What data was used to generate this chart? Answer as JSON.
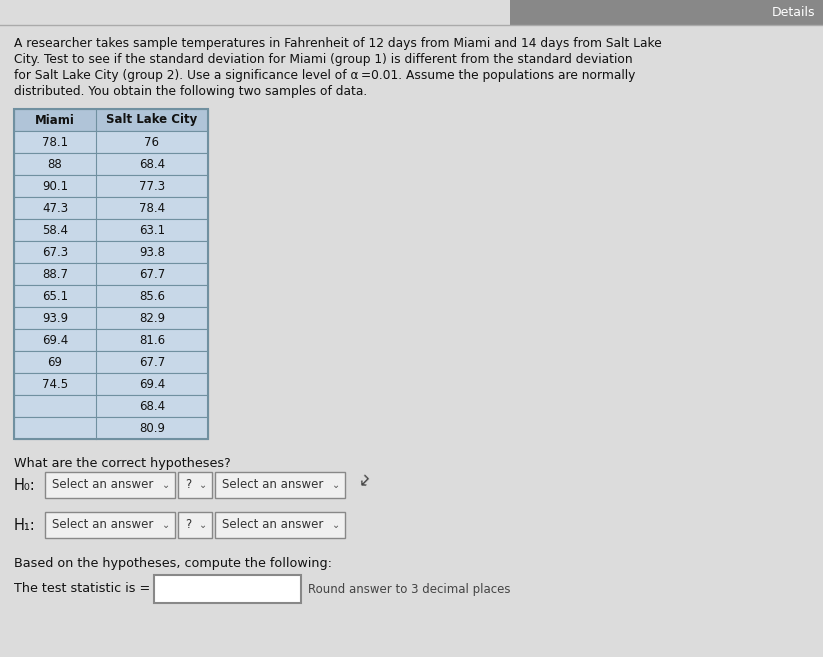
{
  "title_text": "A researcher takes sample temperatures in Fahrenheit of 12 days from Miami and 14 days from Salt Lake\nCity. Test to see if the standard deviation for Miami (group 1) is different from the standard deviation\nfor Salt Lake City (group 2). Use a significance level of α =0.01. Assume the populations are normally\ndistributed. You obtain the following two samples of data.",
  "col1_header": "Miami",
  "col2_header": "Salt Lake City",
  "miami_data": [
    78.1,
    88,
    90.1,
    47.3,
    58.4,
    67.3,
    88.7,
    65.1,
    93.9,
    69.4,
    69,
    74.5
  ],
  "slc_data": [
    76,
    68.4,
    77.3,
    78.4,
    63.1,
    93.8,
    67.7,
    85.6,
    82.9,
    81.6,
    67.7,
    69.4,
    68.4,
    80.9
  ],
  "hypotheses_label": "What are the correct hypotheses?",
  "h0_label": "H₀:",
  "h1_label": "H₁:",
  "dropdown_text": "Select an answer",
  "question_mark": "?",
  "based_text": "Based on the hypotheses, compute the following:",
  "test_stat_label": "The test statistic is =",
  "round_text": "Round answer to 3 decimal places",
  "body_bg": "#dcdcdc",
  "table_cell_bg": "#c8d8e8",
  "table_header_bg": "#b0c4d8",
  "table_border": "#7090a0",
  "input_bg": "#ffffff",
  "dropdown_bg": "#f0f0f0",
  "top_bar_color": "#888888",
  "details_text": "Details"
}
